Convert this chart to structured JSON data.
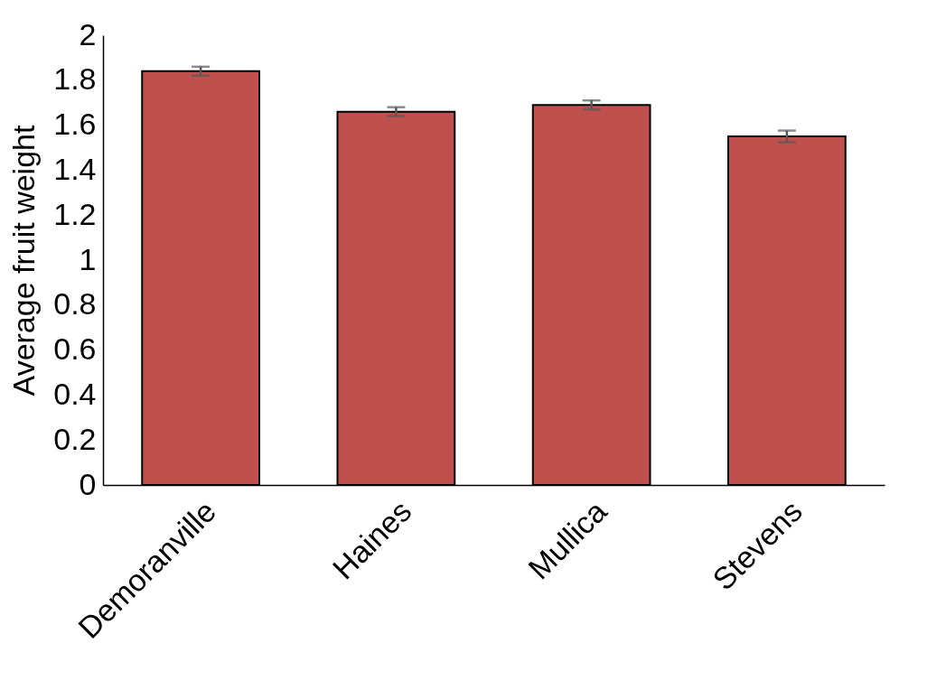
{
  "chart_data": {
    "type": "bar",
    "ylabel": "Average fruit weight",
    "categories": [
      "Demoranville",
      "Haines",
      "Mullica",
      "Stevens"
    ],
    "values": [
      1.84,
      1.66,
      1.69,
      1.55
    ],
    "errors": [
      0.02,
      0.02,
      0.02,
      0.026
    ],
    "color": "#c0504d",
    "ylim": [
      0,
      2
    ],
    "yticks": [
      0,
      0.2,
      0.4,
      0.6,
      0.8,
      1,
      1.2,
      1.4,
      1.6,
      1.8,
      2
    ],
    "grid": false
  }
}
